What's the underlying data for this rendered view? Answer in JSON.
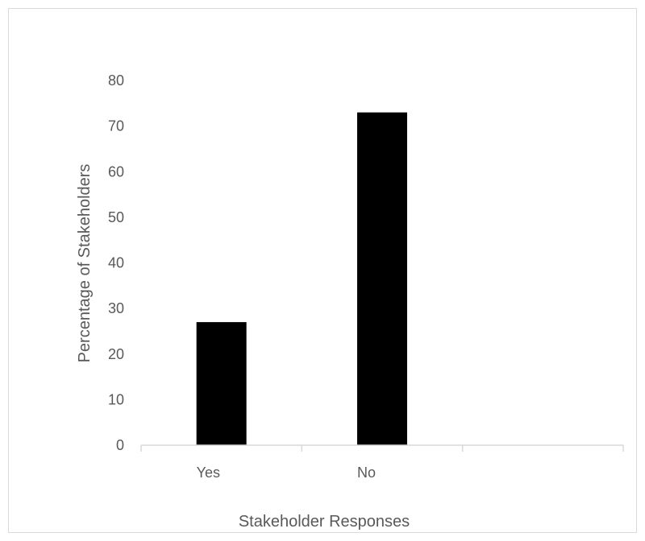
{
  "chart_data": {
    "type": "bar",
    "title": "",
    "xlabel": "Stakeholder Responses",
    "ylabel": "Percentage of Stakeholders",
    "categories": [
      "Yes",
      "No",
      ""
    ],
    "values": [
      27,
      73,
      null
    ],
    "ylim": [
      0,
      80
    ],
    "yticks": [
      0,
      10,
      20,
      30,
      40,
      50,
      60,
      70,
      80
    ],
    "ytick_labels": [
      "0",
      "10",
      "20",
      "30",
      "40",
      "50",
      "60",
      "70",
      "80"
    ],
    "grid": false,
    "legend": "none",
    "colors": {
      "bar": "#000000",
      "axis": "#d9d9d9",
      "text": "#595959",
      "border": "#d9d9d9"
    }
  }
}
